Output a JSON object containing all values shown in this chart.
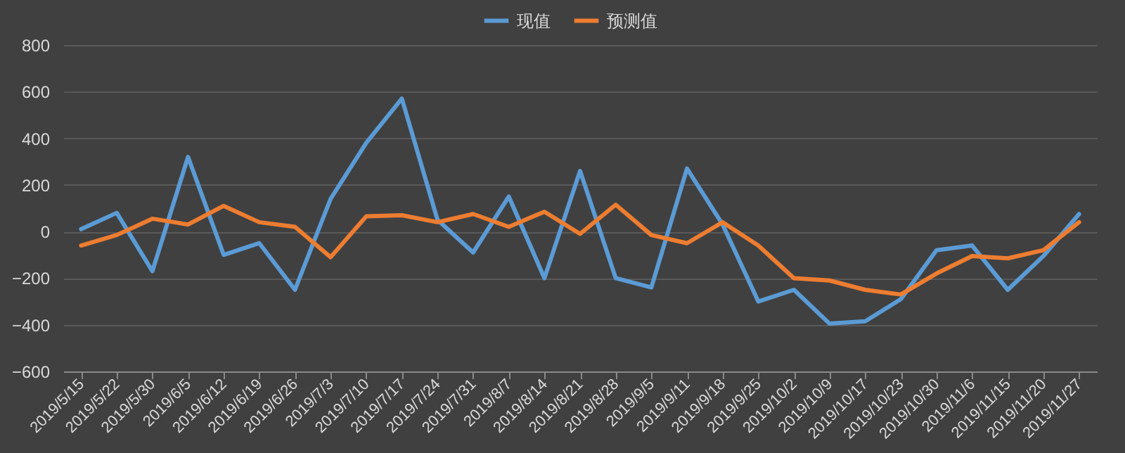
{
  "chart_data": {
    "type": "line",
    "categories": [
      "2019/5/15",
      "2019/5/22",
      "2019/5/30",
      "2019/6/5",
      "2019/6/12",
      "2019/6/19",
      "2019/6/26",
      "2019/7/3",
      "2019/7/10",
      "2019/7/17",
      "2019/7/24",
      "2019/7/31",
      "2019/8/7",
      "2019/8/14",
      "2019/8/21",
      "2019/8/28",
      "2019/9/5",
      "2019/9/11",
      "2019/9/18",
      "2019/9/25",
      "2019/10/2",
      "2019/10/9",
      "2019/10/17",
      "2019/10/23",
      "2019/10/30",
      "2019/11/6",
      "2019/11/15",
      "2019/11/20",
      "2019/11/27"
    ],
    "series": [
      {
        "name": "现值",
        "color": "#5b9bd5",
        "values": [
          10,
          80,
          -170,
          320,
          -100,
          -50,
          -250,
          140,
          380,
          570,
          50,
          -90,
          150,
          -200,
          260,
          -200,
          -240,
          270,
          30,
          -300,
          -250,
          -395,
          -385,
          -290,
          -80,
          -60,
          -250,
          -105,
          75
        ]
      },
      {
        "name": "预测值",
        "color": "#ed7d31",
        "values": [
          -60,
          -15,
          55,
          30,
          110,
          40,
          20,
          -110,
          65,
          70,
          40,
          75,
          20,
          85,
          -10,
          115,
          -15,
          -50,
          40,
          -60,
          -200,
          -210,
          -250,
          -270,
          -180,
          -105,
          -115,
          -80,
          40
        ]
      }
    ],
    "ylim": [
      -600,
      800
    ],
    "yticks": [
      -600,
      -400,
      -200,
      0,
      200,
      400,
      600,
      800
    ],
    "grid": "y",
    "legend": "top",
    "marker": "none",
    "line_style": "solid"
  }
}
